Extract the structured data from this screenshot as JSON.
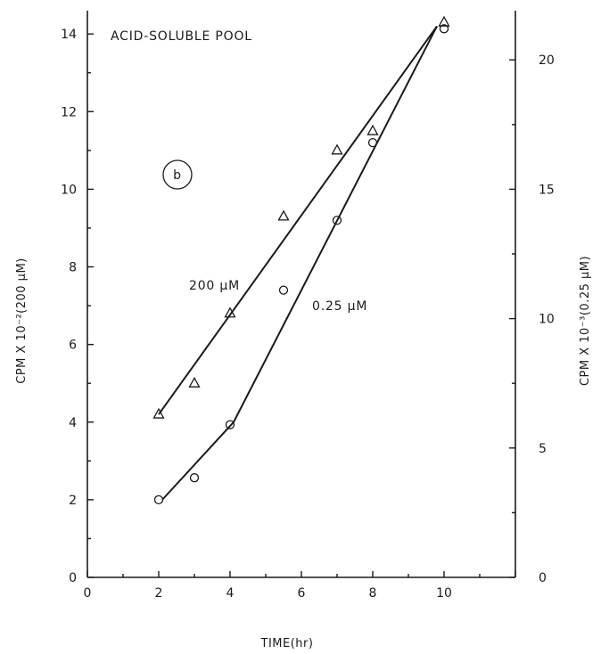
{
  "chart_data": {
    "type": "line",
    "title": "ACID-SOLUBLE POOL",
    "panel_label": "b",
    "xlabel": "TIME(hr)",
    "ylabel_left": "CPM X 10⁻²(200 μM)",
    "ylabel_right": "CPM X 10⁻³(0.25 μM)",
    "xlim": [
      0,
      12
    ],
    "ylim_left": [
      0,
      14.6
    ],
    "ylim_right": [
      0,
      21.9
    ],
    "x_ticks": [
      0,
      2,
      4,
      6,
      8,
      10
    ],
    "x_tick_labels": [
      "0",
      "2",
      "4",
      "6",
      "8",
      "10"
    ],
    "y_left_ticks": [
      0,
      2,
      4,
      6,
      8,
      10,
      12,
      14
    ],
    "y_left_tick_labels": [
      "0",
      "2",
      "4",
      "6",
      "8",
      "10",
      "12",
      "14"
    ],
    "y_right_ticks": [
      0,
      5,
      10,
      15,
      20
    ],
    "y_right_tick_labels": [
      "0",
      "5",
      "10",
      "15",
      "20"
    ],
    "grid": false,
    "series": [
      {
        "name": "200 μM",
        "axis": "left",
        "marker": "triangle",
        "points": [
          {
            "x": 2,
            "y": 4.2
          },
          {
            "x": 3,
            "y": 5.0
          },
          {
            "x": 4,
            "y": 6.8
          },
          {
            "x": 5.5,
            "y": 9.3
          },
          {
            "x": 7,
            "y": 11.0
          },
          {
            "x": 8,
            "y": 11.5
          },
          {
            "x": 10,
            "y": 14.3
          }
        ],
        "fit": [
          {
            "x": 2,
            "y": 4.2
          },
          {
            "x": 9.8,
            "y": 14.2
          }
        ]
      },
      {
        "name": "0.25 μM",
        "axis": "right",
        "marker": "circle",
        "points": [
          {
            "x": 2,
            "y": 3.0
          },
          {
            "x": 3,
            "y": 3.85
          },
          {
            "x": 4,
            "y": 5.9
          },
          {
            "x": 5.5,
            "y": 11.1
          },
          {
            "x": 7,
            "y": 13.8
          },
          {
            "x": 8,
            "y": 16.8
          },
          {
            "x": 10,
            "y": 21.2
          }
        ],
        "fit": [
          {
            "x": 2.1,
            "y": 3.0
          },
          {
            "x": 4.1,
            "y": 6.0
          },
          {
            "x": 9.8,
            "y": 21.3
          }
        ]
      }
    ]
  }
}
